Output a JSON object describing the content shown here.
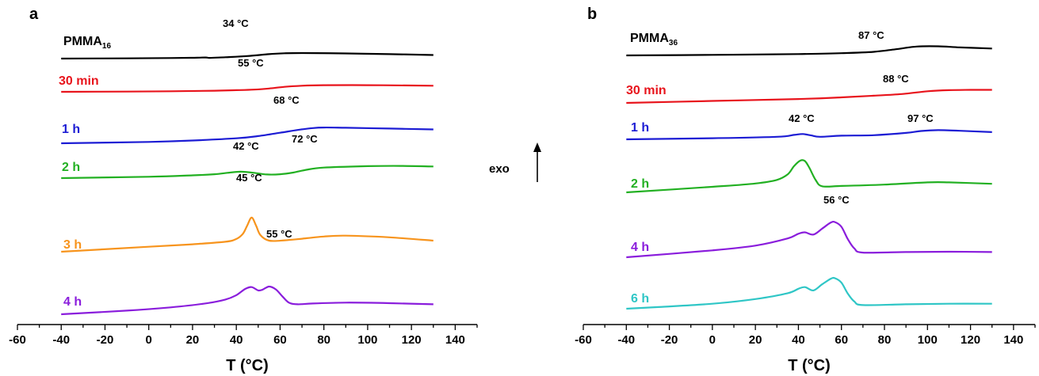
{
  "chart_data": [
    {
      "type": "line",
      "panel_label": "a",
      "xlabel": "T (°C)",
      "xlim": [
        -60,
        150
      ],
      "x_ticks": [
        "-60",
        "-40",
        "-20",
        "0",
        "20",
        "40",
        "60",
        "80",
        "100",
        "120",
        "140"
      ],
      "y_ticks_shown": false,
      "series": [
        {
          "name": "PMMA",
          "name_sub": "16",
          "color": "#000000",
          "x": [
            -40,
            -10,
            10,
            20,
            26,
            28,
            35,
            45,
            55,
            62,
            70,
            90,
            110,
            130
          ],
          "level": [
            0.0,
            0.1,
            0.2,
            0.3,
            0.4,
            0.25,
            0.5,
            0.9,
            1.6,
            1.9,
            2.0,
            1.85,
            1.6,
            1.3
          ],
          "annotations": [
            {
              "text": "34 °C",
              "x": 34
            }
          ]
        },
        {
          "name": "30 min",
          "color": "#e8141c",
          "x": [
            -40,
            -10,
            10,
            30,
            40,
            48,
            55,
            62,
            70,
            80,
            100,
            120,
            130
          ],
          "level": [
            0.0,
            0.1,
            0.2,
            0.4,
            0.6,
            0.8,
            1.2,
            1.8,
            2.2,
            2.4,
            2.4,
            2.3,
            2.2
          ],
          "annotations": [
            {
              "text": "55 °C",
              "x": 55
            }
          ]
        },
        {
          "name": "1 h",
          "color": "#1c1cd4",
          "x": [
            -40,
            0,
            20,
            40,
            50,
            60,
            68,
            75,
            80,
            90,
            110,
            130
          ],
          "level": [
            0.0,
            0.5,
            1.0,
            1.8,
            2.6,
            3.8,
            4.8,
            5.5,
            5.7,
            5.6,
            5.3,
            5.0
          ],
          "annotations": [
            {
              "text": "68 °C",
              "x": 68
            }
          ]
        },
        {
          "name": "2 h",
          "color": "#22b022",
          "x": [
            -40,
            0,
            20,
            30,
            36,
            42,
            48,
            54,
            60,
            66,
            72,
            80,
            100,
            115,
            130
          ],
          "level": [
            0.0,
            0.5,
            1.0,
            1.4,
            1.9,
            2.3,
            1.9,
            1.3,
            1.4,
            2.0,
            3.0,
            3.8,
            4.3,
            4.4,
            4.2
          ],
          "annotations": [
            {
              "text": "42 °C",
              "x": 42
            },
            {
              "text": "72 °C",
              "x": 72
            }
          ]
        },
        {
          "name": "3 h",
          "color": "#f7941d",
          "x": [
            -40,
            0,
            20,
            35,
            40,
            43,
            45,
            47,
            49,
            51,
            55,
            62,
            70,
            80,
            90,
            110,
            130
          ],
          "level": [
            0.0,
            1.8,
            2.7,
            3.6,
            4.6,
            6.5,
            9.5,
            12.3,
            9.5,
            6.0,
            4.0,
            4.1,
            4.7,
            5.5,
            5.8,
            5.2,
            4.0
          ],
          "annotations": [
            {
              "text": "45 °C",
              "x": 45
            }
          ]
        },
        {
          "name": "4 h",
          "color": "#8a1ddc",
          "x": [
            -40,
            -10,
            10,
            25,
            35,
            40,
            44,
            47,
            50,
            52,
            55,
            58,
            61,
            64,
            68,
            75,
            90,
            110,
            130
          ],
          "level": [
            0.0,
            1.3,
            2.5,
            3.8,
            5.3,
            6.9,
            9.1,
            9.8,
            8.6,
            8.9,
            10.0,
            9.0,
            6.5,
            4.2,
            3.6,
            3.9,
            4.2,
            4.0,
            3.6
          ],
          "annotations": [
            {
              "text": "55 °C",
              "x": 55
            }
          ]
        }
      ]
    },
    {
      "type": "line",
      "panel_label": "b",
      "xlabel": "T (°C)",
      "xlim": [
        -60,
        150
      ],
      "x_ticks": [
        "-60",
        "-40",
        "-20",
        "0",
        "20",
        "40",
        "60",
        "80",
        "100",
        "120",
        "140"
      ],
      "y_ticks_shown": false,
      "series": [
        {
          "name": "PMMA",
          "name_sub": "36",
          "color": "#000000",
          "x": [
            -40,
            0,
            40,
            60,
            75,
            85,
            95,
            105,
            115,
            130
          ],
          "level": [
            0.0,
            0.2,
            0.5,
            0.8,
            1.3,
            2.2,
            3.2,
            3.3,
            2.9,
            2.5
          ],
          "annotations": [
            {
              "text": "87 °C",
              "x": 87
            }
          ]
        },
        {
          "name": "30 min",
          "color": "#e8141c",
          "x": [
            -40,
            0,
            40,
            60,
            75,
            88,
            100,
            110,
            120,
            130
          ],
          "level": [
            0.0,
            0.7,
            1.4,
            2.0,
            2.6,
            3.2,
            4.2,
            4.6,
            4.7,
            4.7
          ],
          "annotations": [
            {
              "text": "88 °C",
              "x": 88
            }
          ]
        },
        {
          "name": "1 h",
          "color": "#1c1cd4",
          "x": [
            -40,
            0,
            30,
            38,
            42,
            46,
            50,
            60,
            75,
            90,
            97,
            105,
            115,
            130
          ],
          "level": [
            0.0,
            0.4,
            0.9,
            1.6,
            1.9,
            1.4,
            0.9,
            1.3,
            1.5,
            2.3,
            3.0,
            3.3,
            3.1,
            2.6
          ],
          "annotations": [
            {
              "text": "42 °C",
              "x": 42
            },
            {
              "text": "97 °C",
              "x": 97
            }
          ]
        },
        {
          "name": "2 h",
          "color": "#22b022",
          "x": [
            -40,
            0,
            20,
            30,
            35,
            38,
            41,
            43,
            45,
            48,
            51,
            60,
            80,
            100,
            110,
            130
          ],
          "level": [
            0.0,
            2.0,
            3.2,
            4.5,
            6.5,
            9.5,
            11.5,
            11.3,
            9.0,
            4.5,
            2.2,
            2.3,
            2.8,
            3.6,
            3.6,
            3.1
          ],
          "annotations": []
        },
        {
          "name": "4 h",
          "color": "#8a1ddc",
          "x": [
            -40,
            0,
            20,
            35,
            40,
            43,
            47,
            51,
            55,
            57,
            60,
            63,
            66,
            70,
            90,
            110,
            130
          ],
          "level": [
            0.0,
            2.5,
            4.2,
            6.8,
            8.5,
            9.0,
            8.2,
            10.3,
            12.5,
            12.7,
            11.0,
            6.5,
            3.2,
            1.7,
            1.9,
            2.0,
            1.9
          ],
          "annotations": [
            {
              "text": "56 °C",
              "x": 56
            }
          ]
        },
        {
          "name": "6 h",
          "color": "#2fc6c6",
          "x": [
            -40,
            -25,
            0,
            20,
            35,
            40,
            43,
            47,
            51,
            55,
            57,
            60,
            63,
            66,
            70,
            90,
            110,
            130
          ],
          "level": [
            0.0,
            0.6,
            1.8,
            3.5,
            5.6,
            7.2,
            7.8,
            6.6,
            8.8,
            10.8,
            11.0,
            9.4,
            5.4,
            2.6,
            1.3,
            1.6,
            1.8,
            1.8
          ],
          "annotations": []
        }
      ]
    }
  ],
  "exo_label": "exo"
}
